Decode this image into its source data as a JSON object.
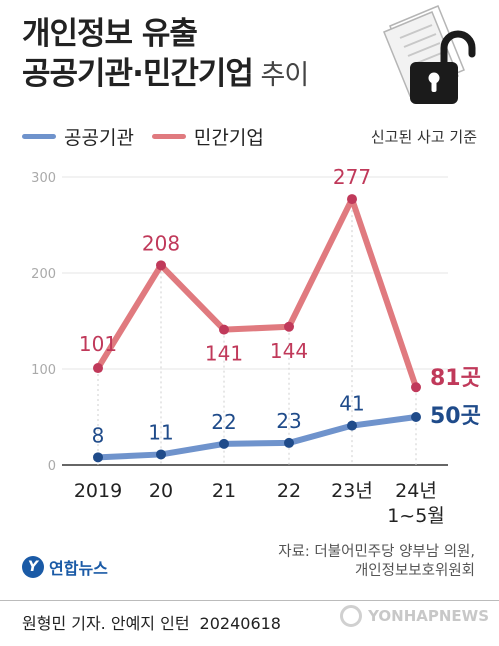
{
  "title": {
    "line1": "개인정보 유출",
    "line2_bold": "공공기관·민간기업",
    "line2_light": " 추이"
  },
  "basis_note": "신고된 사고 기준",
  "chart_data": {
    "type": "line",
    "categories": [
      "2019",
      "20",
      "21",
      "22",
      "23년",
      "24년 1~5월"
    ],
    "series": [
      {
        "name": "민간기업",
        "color": "#e07a7f",
        "label_color": "#c0395a",
        "values": [
          101,
          208,
          141,
          144,
          277,
          81
        ],
        "last_label": "81곳"
      },
      {
        "name": "공공기관",
        "color": "#6f93cc",
        "label_color": "#1f4b8a",
        "values": [
          8,
          11,
          22,
          23,
          41,
          50
        ],
        "last_label": "50곳"
      }
    ],
    "yticks": [
      0,
      100,
      200,
      300
    ],
    "ylim": [
      0,
      300
    ],
    "grid": false,
    "legend": "top-left"
  },
  "source": {
    "line1": "자료: 더불어민주당 양부남 의원,",
    "line2": "개인정보보호위원회"
  },
  "logo": {
    "mark": "Y",
    "text": "연합뉴스"
  },
  "credit": {
    "text": "원형민 기자. 안예지 인턴",
    "date": "20240618"
  },
  "watermark": "YONHAPNEWS"
}
